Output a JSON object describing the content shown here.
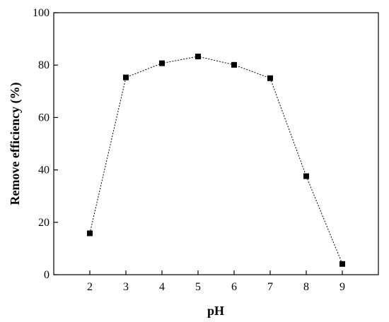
{
  "chart_data": {
    "type": "line",
    "title": "",
    "xlabel": "pH",
    "ylabel": "Remove efficiency (%)",
    "x": [
      2,
      3,
      4,
      5,
      6,
      7,
      8,
      9
    ],
    "series": [
      {
        "values": [
          15.8,
          75.3,
          80.7,
          83.3,
          80.1,
          75.0,
          37.6,
          4.1
        ]
      }
    ],
    "xlim": [
      1,
      10
    ],
    "ylim": [
      0,
      100
    ],
    "xticks": [
      2,
      3,
      4,
      5,
      6,
      7,
      8,
      9
    ],
    "yticks": [
      0,
      20,
      40,
      60,
      80,
      100
    ],
    "grid": false,
    "legend": "none",
    "marker": "square",
    "line_style": "dotted",
    "color": "#000000"
  }
}
